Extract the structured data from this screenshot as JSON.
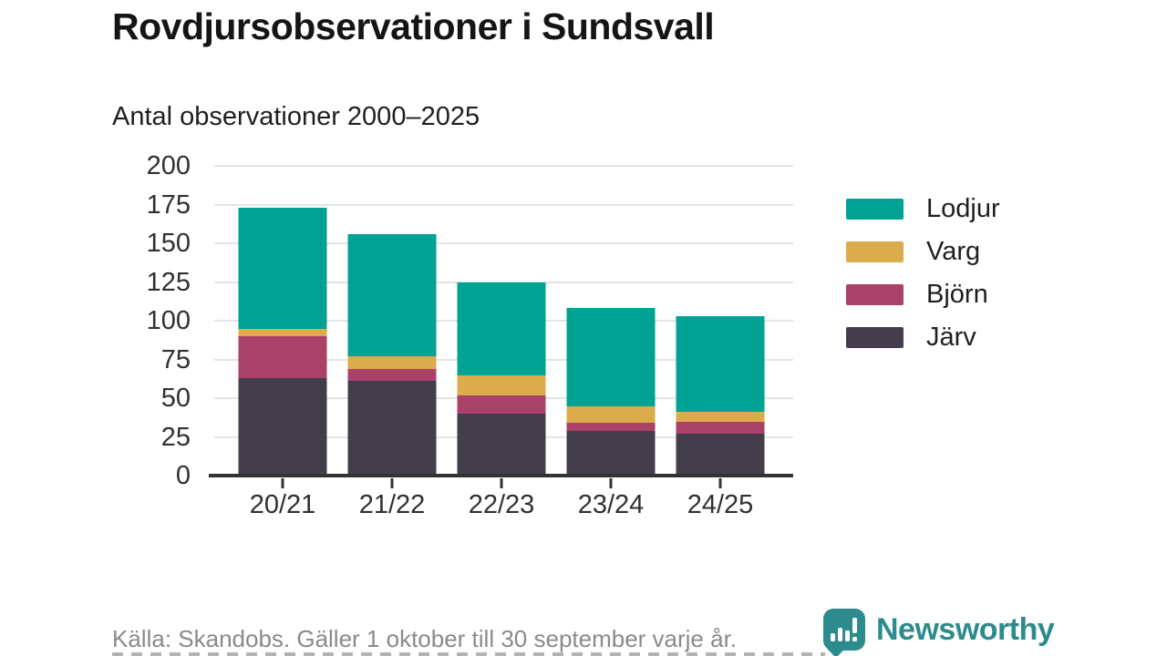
{
  "title": "Rovdjursobservationer i Sundsvall",
  "subtitle": "Antal observationer 2000–2025",
  "footer": {
    "source": "Källa: Skandobs. Gäller 1 oktober till 30 september varje år."
  },
  "branding": {
    "name": "Newsworthy",
    "logo_color": "#2e8b8d",
    "logo_icon": "speech-bubble-bar-chart-exclamation"
  },
  "colors": {
    "lodjur": "#00a294",
    "varg": "#dcac4c",
    "bjorn": "#aa4168",
    "jarv": "#433d4c",
    "gridline": "#e4e4e4",
    "axis": "#333333",
    "tick_text": "#303030",
    "footer_text": "#8a8a8a",
    "background": "#ffffff"
  },
  "chart_data": {
    "type": "bar",
    "stacked": true,
    "title": "Rovdjursobservationer i Sundsvall",
    "subtitle": "Antal observationer 2000–2025",
    "categories": [
      "20/21",
      "21/22",
      "22/23",
      "23/24",
      "24/25"
    ],
    "series": [
      {
        "name": "Järv",
        "color": "#433d4c",
        "values": [
          63,
          61,
          40,
          29,
          27
        ]
      },
      {
        "name": "Björn",
        "color": "#aa4168",
        "values": [
          27,
          8,
          12,
          5,
          8
        ]
      },
      {
        "name": "Varg",
        "color": "#dcac4c",
        "values": [
          5,
          8,
          13,
          11,
          6
        ]
      },
      {
        "name": "Lodjur",
        "color": "#00a294",
        "values": [
          78,
          79,
          60,
          63,
          62
        ]
      }
    ],
    "totals": [
      173,
      156,
      125,
      108,
      103
    ],
    "y_ticks": [
      0,
      25,
      50,
      75,
      100,
      125,
      150,
      175,
      200
    ],
    "ylim": [
      0,
      200
    ],
    "grid": true,
    "legend_position": "right",
    "legend_order": [
      "Lodjur",
      "Varg",
      "Björn",
      "Järv"
    ],
    "source": "Källa: Skandobs. Gäller 1 oktober till 30 september varje år."
  }
}
